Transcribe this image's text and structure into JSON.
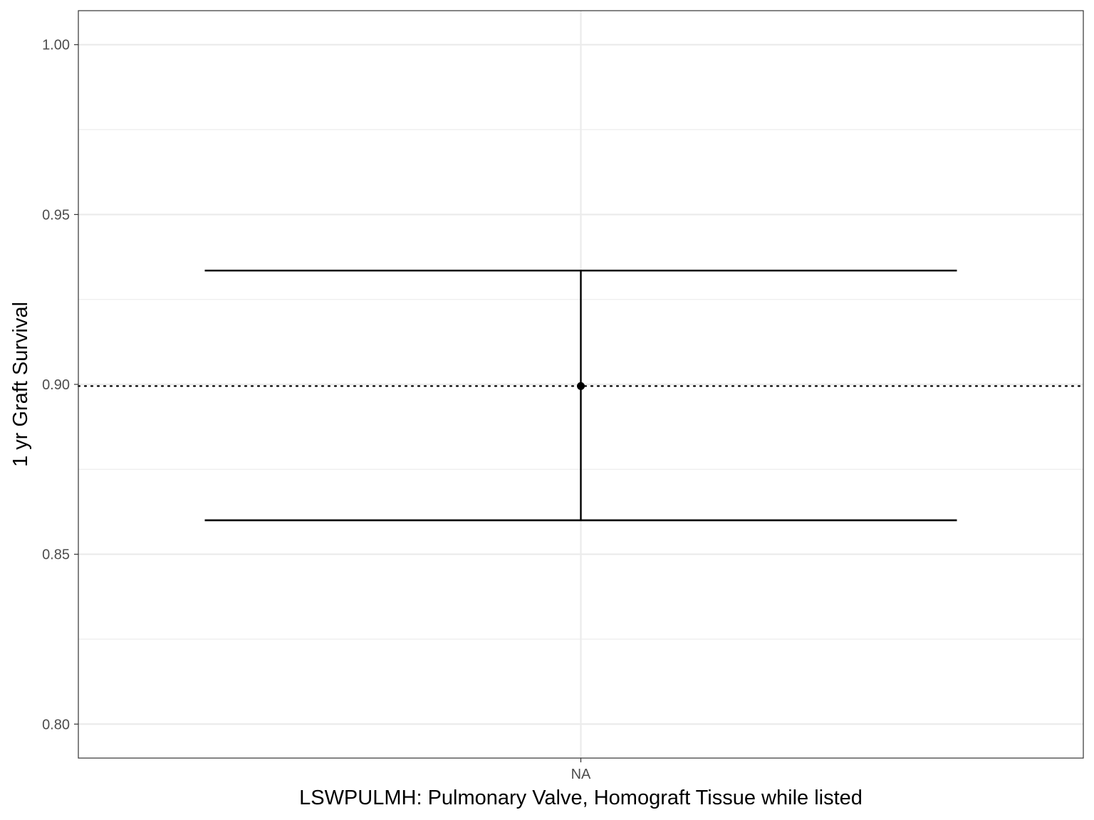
{
  "chart_data": {
    "type": "errorbar",
    "xlabel": "LSWPULMH: Pulmonary Valve, Homograft Tissue while listed",
    "ylabel": "1 yr Graft Survival",
    "categories": [
      "NA"
    ],
    "points": [
      {
        "category": "NA",
        "estimate": 0.8995,
        "lower": 0.86,
        "upper": 0.9335
      }
    ],
    "reference_line": {
      "y": 0.8995,
      "style": "dotted"
    },
    "ylim": [
      0.79,
      1.01
    ],
    "y_ticks": [
      {
        "value": 0.8,
        "label": "0.80"
      },
      {
        "value": 0.85,
        "label": "0.85"
      },
      {
        "value": 0.9,
        "label": "0.90"
      },
      {
        "value": 0.95,
        "label": "0.95"
      },
      {
        "value": 1.0,
        "label": "1.00"
      }
    ],
    "y_minor_ticks": [
      0.825,
      0.875,
      0.925,
      0.975
    ],
    "grid": true,
    "colors": {
      "grid": "#ebebeb",
      "mark": "#000000",
      "tick_text": "#4d4d4d",
      "panel_border": "#333333"
    }
  }
}
